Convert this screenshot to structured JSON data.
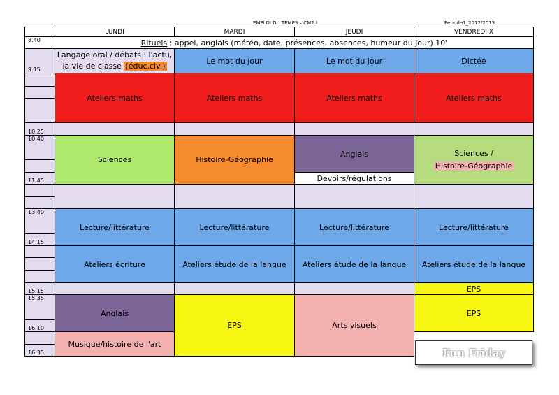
{
  "header": {
    "title": "EMPLOI DU TEMPS – CM2  L",
    "period": "Période1_2012/2013"
  },
  "days": [
    "LUNDI",
    "MARDI",
    "JEUDI",
    "VENDREDI    X"
  ],
  "times": {
    "t0840": "8.40",
    "t0915": "9.15",
    "t1025": "10.25",
    "t1040": "10.40",
    "t1145": "11.45",
    "t1340": "13.40",
    "t1415": "14.15",
    "t1515": "15.15",
    "t1535": "15.35",
    "t1610": "16.10",
    "t1635": "16.35"
  },
  "rituels": {
    "label": "Rituels",
    "text": " : appel, anglais (météo, date, présences, absences, humeur du jour) 10'"
  },
  "cells": {
    "langage_oral": "Langage oral / débats : l'actu, la vie de classe ",
    "educ_civ": "(éduc.civ.)",
    "mot_du_jour": "Le mot du jour",
    "dictee": "Dictée",
    "ateliers_maths": "Ateliers maths",
    "sciences": "Sciences",
    "histoire_geo": "Histoire-Géographie",
    "anglais": "Anglais",
    "devoirs": "Devoirs/régulations",
    "sciences_slash": "Sciences /",
    "lecture": "Lecture/littérature",
    "ateliers_ecriture": "Ateliers écriture",
    "ateliers_etude": "Ateliers étude de la langue",
    "eps": "EPS",
    "arts_visuels": "Arts visuels",
    "musique": "Musique/histoire de l'art"
  },
  "badge": "Fun Friday",
  "colors": {
    "lavender": "#e3dcee",
    "blue": "#6fa8e8",
    "red": "#f21d1d",
    "green": "#aee96b",
    "orange": "#f58a2e",
    "purple": "#7b6697",
    "light_green": "#b6dc7d",
    "yellow": "#f7f714",
    "pink": "#f2b1ae"
  }
}
